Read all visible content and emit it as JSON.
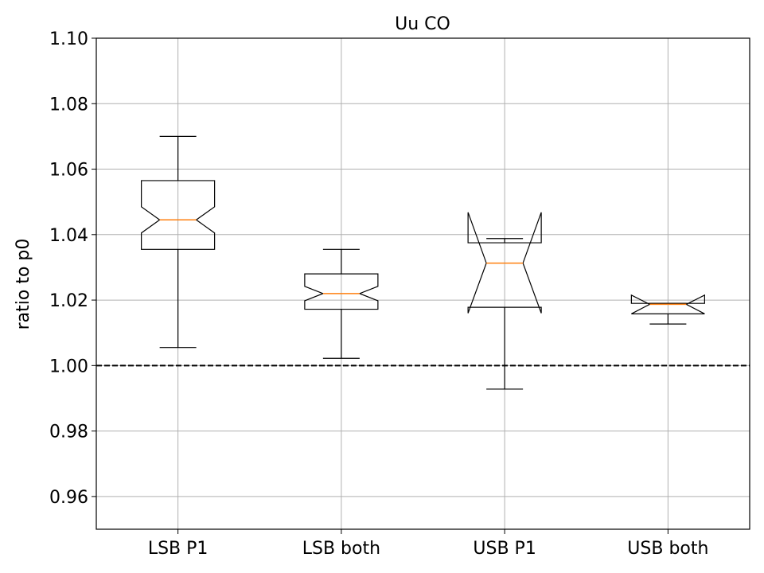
{
  "chart_data": {
    "type": "boxplot",
    "title": "Uu CO",
    "xlabel": "",
    "ylabel": "ratio to p0",
    "ylim": [
      0.95,
      1.1
    ],
    "yticks": [
      "0.96",
      "0.98",
      "1.00",
      "1.02",
      "1.04",
      "1.06",
      "1.08",
      "1.10"
    ],
    "categories": [
      "LSB P1",
      "LSB both",
      "USB P1",
      "USB both"
    ],
    "notched": true,
    "grid": true,
    "reference_line": {
      "y": 1.0,
      "style": "dashed",
      "color": "#000000"
    },
    "boxes": [
      {
        "name": "LSB P1",
        "whisker_low": 1.0055,
        "q1": 1.0355,
        "median": 1.0445,
        "q3": 1.0565,
        "whisker_high": 1.07,
        "notch_low": 1.0405,
        "notch_high": 1.0485
      },
      {
        "name": "LSB both",
        "whisker_low": 1.0022,
        "q1": 1.0172,
        "median": 1.022,
        "q3": 1.028,
        "whisker_high": 1.0355,
        "notch_low": 1.0198,
        "notch_high": 1.0242
      },
      {
        "name": "USB P1",
        "whisker_low": 0.9928,
        "q1": 1.0178,
        "median": 1.0313,
        "q3": 1.0375,
        "whisker_high": 1.0388,
        "notch_low": 1.016,
        "notch_high": 1.0468
      },
      {
        "name": "USB both",
        "whisker_low": 1.0127,
        "q1": 1.0158,
        "median": 1.0187,
        "q3": 1.019,
        "whisker_high": 1.019,
        "notch_low": 1.0158,
        "notch_high": 1.0215
      }
    ],
    "colors": {
      "box": "#000000",
      "median": "#ff7f0e",
      "grid": "#b0b0b0"
    }
  }
}
